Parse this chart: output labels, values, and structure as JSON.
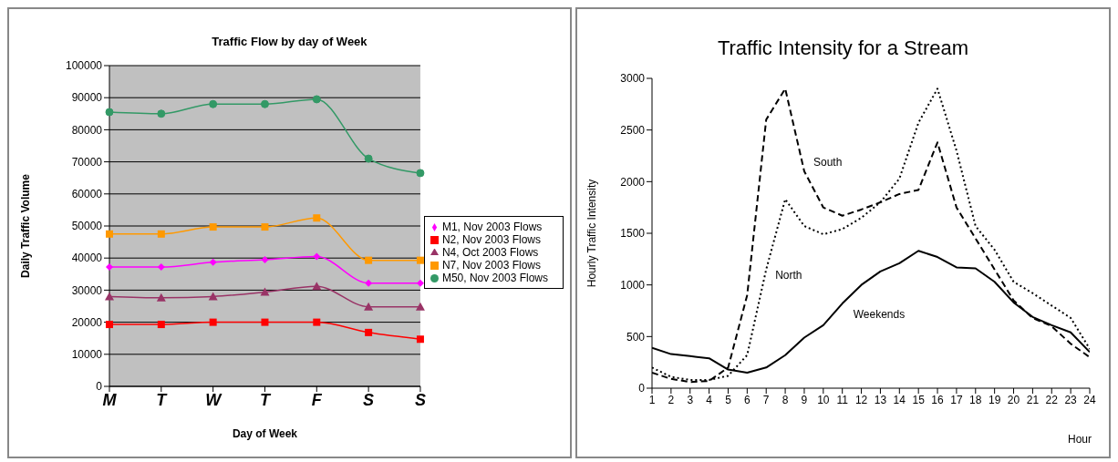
{
  "chart_data": [
    {
      "type": "line",
      "title": "Traffic Flow by day of Week",
      "xlabel": "Day of Week",
      "ylabel": "Daily Traffic Volume",
      "categories": [
        "M",
        "T",
        "W",
        "T",
        "F",
        "S",
        "S"
      ],
      "ylim": [
        0,
        100000
      ],
      "yticks": [
        0,
        10000,
        20000,
        30000,
        40000,
        50000,
        60000,
        70000,
        80000,
        90000,
        100000
      ],
      "grid": "y",
      "legend": "right",
      "series": [
        {
          "name": "M1, Nov 2003 Flows",
          "color": "#ff00ff",
          "marker": "diamond",
          "values": [
            37200,
            37200,
            38700,
            39500,
            40500,
            32200,
            32200
          ]
        },
        {
          "name": "N2, Nov 2003 Flows",
          "color": "#ff0000",
          "marker": "square",
          "values": [
            19300,
            19300,
            20000,
            20000,
            20000,
            16800,
            14700
          ]
        },
        {
          "name": "N4, Oct 2003 Flows",
          "color": "#993366",
          "marker": "triangle",
          "values": [
            28000,
            27600,
            28000,
            29400,
            31200,
            24800,
            24800
          ]
        },
        {
          "name": "N7, Nov 2003 Flows",
          "color": "#ff9900",
          "marker": "square",
          "values": [
            47500,
            47500,
            49700,
            49700,
            52500,
            39300,
            39300
          ]
        },
        {
          "name": "M50, Nov 2003 Flows",
          "color": "#339966",
          "marker": "circle",
          "values": [
            85500,
            85000,
            88000,
            88000,
            89500,
            71000,
            66500
          ]
        }
      ]
    },
    {
      "type": "line",
      "title": "Traffic Intensity for a Stream",
      "xlabel": "Hour",
      "ylabel": "Hourly Traffic Intensity",
      "x": [
        1,
        2,
        3,
        4,
        5,
        6,
        7,
        8,
        9,
        10,
        11,
        12,
        13,
        14,
        15,
        16,
        17,
        18,
        19,
        20,
        21,
        22,
        23,
        24
      ],
      "xlim": [
        1,
        24
      ],
      "xticks": [
        1,
        2,
        3,
        4,
        5,
        6,
        7,
        8,
        9,
        10,
        11,
        12,
        13,
        14,
        15,
        16,
        17,
        18,
        19,
        20,
        21,
        22,
        23,
        24
      ],
      "ylim": [
        0,
        3000
      ],
      "yticks": [
        0,
        500,
        1000,
        1500,
        2000,
        2500,
        3000
      ],
      "grid": false,
      "legend": false,
      "marker": "none",
      "series": [
        {
          "name": "South",
          "color": "#000000",
          "line_style": "dashed",
          "values": [
            150,
            90,
            60,
            70,
            200,
            900,
            2600,
            2900,
            2100,
            1750,
            1670,
            1730,
            1800,
            1880,
            1920,
            2380,
            1750,
            1450,
            1150,
            850,
            680,
            600,
            430,
            300
          ]
        },
        {
          "name": "North",
          "color": "#000000",
          "line_style": "dotted",
          "values": [
            200,
            110,
            80,
            80,
            120,
            320,
            1150,
            1830,
            1570,
            1490,
            1540,
            1650,
            1800,
            2030,
            2570,
            2900,
            2300,
            1570,
            1340,
            1030,
            920,
            800,
            680,
            380
          ]
        },
        {
          "name": "Weekends",
          "color": "#000000",
          "line_style": "solid",
          "values": [
            390,
            330,
            310,
            290,
            180,
            150,
            200,
            320,
            490,
            610,
            820,
            1000,
            1130,
            1210,
            1330,
            1270,
            1170,
            1160,
            1030,
            830,
            690,
            610,
            540,
            350
          ]
        }
      ]
    }
  ]
}
